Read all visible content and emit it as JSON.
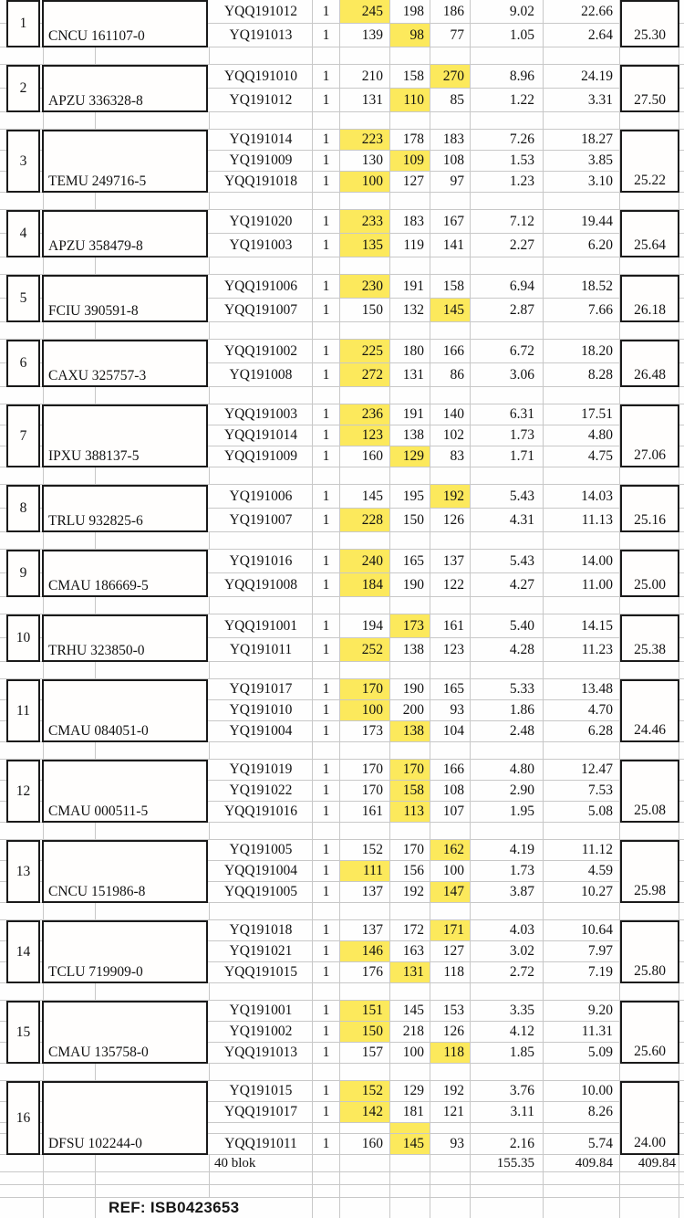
{
  "colors": {
    "highlight": "#fce95c",
    "grid": "#c8c8c8",
    "border": "#1a1a1a"
  },
  "footer": {
    "summary_label": "40 blok",
    "summary_d1": "155.35",
    "summary_d2": "409.84",
    "summary_total": "409.84",
    "ref": "REF: ISB0423653"
  },
  "groups": [
    {
      "num": "1",
      "container": "CNCU 161107-0",
      "box_value": "25.30",
      "rows": [
        {
          "batch": "YQQ191012",
          "qty": "1",
          "v1": "245",
          "v2": "198",
          "v3": "186",
          "d1": "9.02",
          "d2": "22.66",
          "hl": "v1"
        },
        {
          "batch": "YQ191013",
          "qty": "1",
          "v1": "139",
          "v2": "98",
          "v3": "77",
          "d1": "1.05",
          "d2": "2.64",
          "hl": "v2"
        }
      ]
    },
    {
      "num": "2",
      "container": "APZU 336328-8",
      "box_value": "27.50",
      "rows": [
        {
          "batch": "YQQ191010",
          "qty": "1",
          "v1": "210",
          "v2": "158",
          "v3": "270",
          "d1": "8.96",
          "d2": "24.19",
          "hl": "v3"
        },
        {
          "batch": "YQ191012",
          "qty": "1",
          "v1": "131",
          "v2": "110",
          "v3": "85",
          "d1": "1.22",
          "d2": "3.31",
          "hl": "v2"
        }
      ]
    },
    {
      "num": "3",
      "container": "TEMU 249716-5",
      "box_value": "25.22",
      "rows": [
        {
          "batch": "YQ191014",
          "qty": "1",
          "v1": "223",
          "v2": "178",
          "v3": "183",
          "d1": "7.26",
          "d2": "18.27",
          "hl": "v1"
        },
        {
          "batch": "YQ191009",
          "qty": "1",
          "v1": "130",
          "v2": "109",
          "v3": "108",
          "d1": "1.53",
          "d2": "3.85",
          "hl": "v2"
        },
        {
          "batch": "YQQ191018",
          "qty": "1",
          "v1": "100",
          "v2": "127",
          "v3": "97",
          "d1": "1.23",
          "d2": "3.10",
          "hl": "v1"
        }
      ]
    },
    {
      "num": "4",
      "container": "APZU 358479-8",
      "box_value": "25.64",
      "rows": [
        {
          "batch": "YQ191020",
          "qty": "1",
          "v1": "233",
          "v2": "183",
          "v3": "167",
          "d1": "7.12",
          "d2": "19.44",
          "hl": "v1"
        },
        {
          "batch": "YQ191003",
          "qty": "1",
          "v1": "135",
          "v2": "119",
          "v3": "141",
          "d1": "2.27",
          "d2": "6.20",
          "hl": "v1"
        }
      ]
    },
    {
      "num": "5",
      "container": "FCIU 390591-8",
      "box_value": "26.18",
      "rows": [
        {
          "batch": "YQQ191006",
          "qty": "1",
          "v1": "230",
          "v2": "191",
          "v3": "158",
          "d1": "6.94",
          "d2": "18.52",
          "hl": "v1"
        },
        {
          "batch": "YQQ191007",
          "qty": "1",
          "v1": "150",
          "v2": "132",
          "v3": "145",
          "d1": "2.87",
          "d2": "7.66",
          "hl": "v3"
        }
      ]
    },
    {
      "num": "6",
      "container": "CAXU 325757-3",
      "box_value": "26.48",
      "rows": [
        {
          "batch": "YQQ191002",
          "qty": "1",
          "v1": "225",
          "v2": "180",
          "v3": "166",
          "d1": "6.72",
          "d2": "18.20",
          "hl": "v1"
        },
        {
          "batch": "YQ191008",
          "qty": "1",
          "v1": "272",
          "v2": "131",
          "v3": "86",
          "d1": "3.06",
          "d2": "8.28",
          "hl": "v1"
        }
      ]
    },
    {
      "num": "7",
      "container": "IPXU 388137-5",
      "box_value": "27.06",
      "rows": [
        {
          "batch": "YQQ191003",
          "qty": "1",
          "v1": "236",
          "v2": "191",
          "v3": "140",
          "d1": "6.31",
          "d2": "17.51",
          "hl": "v1"
        },
        {
          "batch": "YQQ191014",
          "qty": "1",
          "v1": "123",
          "v2": "138",
          "v3": "102",
          "d1": "1.73",
          "d2": "4.80",
          "hl": "v1"
        },
        {
          "batch": "YQQ191009",
          "qty": "1",
          "v1": "160",
          "v2": "129",
          "v3": "83",
          "d1": "1.71",
          "d2": "4.75",
          "hl": "v2"
        }
      ]
    },
    {
      "num": "8",
      "container": "TRLU 932825-6",
      "box_value": "25.16",
      "rows": [
        {
          "batch": "YQ191006",
          "qty": "1",
          "v1": "145",
          "v2": "195",
          "v3": "192",
          "d1": "5.43",
          "d2": "14.03",
          "hl": "v3"
        },
        {
          "batch": "YQ191007",
          "qty": "1",
          "v1": "228",
          "v2": "150",
          "v3": "126",
          "d1": "4.31",
          "d2": "11.13",
          "hl": "v1"
        }
      ]
    },
    {
      "num": "9",
      "container": "CMAU 186669-5",
      "box_value": "25.00",
      "rows": [
        {
          "batch": "YQ191016",
          "qty": "1",
          "v1": "240",
          "v2": "165",
          "v3": "137",
          "d1": "5.43",
          "d2": "14.00",
          "hl": "v1"
        },
        {
          "batch": "YQQ191008",
          "qty": "1",
          "v1": "184",
          "v2": "190",
          "v3": "122",
          "d1": "4.27",
          "d2": "11.00",
          "hl": "v1"
        }
      ]
    },
    {
      "num": "10",
      "container": "TRHU 323850-0",
      "box_value": "25.38",
      "rows": [
        {
          "batch": "YQQ191001",
          "qty": "1",
          "v1": "194",
          "v2": "173",
          "v3": "161",
          "d1": "5.40",
          "d2": "14.15",
          "hl": "v2"
        },
        {
          "batch": "YQ191011",
          "qty": "1",
          "v1": "252",
          "v2": "138",
          "v3": "123",
          "d1": "4.28",
          "d2": "11.23",
          "hl": "v1"
        }
      ]
    },
    {
      "num": "11",
      "container": "CMAU 084051-0",
      "box_value": "24.46",
      "rows": [
        {
          "batch": "YQ191017",
          "qty": "1",
          "v1": "170",
          "v2": "190",
          "v3": "165",
          "d1": "5.33",
          "d2": "13.48",
          "hl": "v1"
        },
        {
          "batch": "YQ191010",
          "qty": "1",
          "v1": "100",
          "v2": "200",
          "v3": "93",
          "d1": "1.86",
          "d2": "4.70",
          "hl": "v1"
        },
        {
          "batch": "YQ191004",
          "qty": "1",
          "v1": "173",
          "v2": "138",
          "v3": "104",
          "d1": "2.48",
          "d2": "6.28",
          "hl": "v2"
        }
      ]
    },
    {
      "num": "12",
      "container": "CMAU 000511-5",
      "box_value": "25.08",
      "rows": [
        {
          "batch": "YQ191019",
          "qty": "1",
          "v1": "170",
          "v2": "170",
          "v3": "166",
          "d1": "4.80",
          "d2": "12.47",
          "hl": "v2"
        },
        {
          "batch": "YQ191022",
          "qty": "1",
          "v1": "170",
          "v2": "158",
          "v3": "108",
          "d1": "2.90",
          "d2": "7.53",
          "hl": "v2"
        },
        {
          "batch": "YQQ191016",
          "qty": "1",
          "v1": "161",
          "v2": "113",
          "v3": "107",
          "d1": "1.95",
          "d2": "5.08",
          "hl": "v2"
        }
      ]
    },
    {
      "num": "13",
      "container": "CNCU 151986-8",
      "box_value": "25.98",
      "rows": [
        {
          "batch": "YQ191005",
          "qty": "1",
          "v1": "152",
          "v2": "170",
          "v3": "162",
          "d1": "4.19",
          "d2": "11.12",
          "hl": "v3"
        },
        {
          "batch": "YQQ191004",
          "qty": "1",
          "v1": "111",
          "v2": "156",
          "v3": "100",
          "d1": "1.73",
          "d2": "4.59",
          "hl": "v1"
        },
        {
          "batch": "YQQ191005",
          "qty": "1",
          "v1": "137",
          "v2": "192",
          "v3": "147",
          "d1": "3.87",
          "d2": "10.27",
          "hl": "v3"
        }
      ]
    },
    {
      "num": "14",
      "container": "TCLU 719909-0",
      "box_value": "25.80",
      "rows": [
        {
          "batch": "YQ191018",
          "qty": "1",
          "v1": "137",
          "v2": "172",
          "v3": "171",
          "d1": "4.03",
          "d2": "10.64",
          "hl": "v3"
        },
        {
          "batch": "YQ191021",
          "qty": "1",
          "v1": "146",
          "v2": "163",
          "v3": "127",
          "d1": "3.02",
          "d2": "7.97",
          "hl": "v1"
        },
        {
          "batch": "YQQ191015",
          "qty": "1",
          "v1": "176",
          "v2": "131",
          "v3": "118",
          "d1": "2.72",
          "d2": "7.19",
          "hl": "v2"
        }
      ]
    },
    {
      "num": "15",
      "container": "CMAU 135758-0",
      "box_value": "25.60",
      "rows": [
        {
          "batch": "YQ191001",
          "qty": "1",
          "v1": "151",
          "v2": "145",
          "v3": "153",
          "d1": "3.35",
          "d2": "9.20",
          "hl": "v1"
        },
        {
          "batch": "YQ191002",
          "qty": "1",
          "v1": "150",
          "v2": "218",
          "v3": "126",
          "d1": "4.12",
          "d2": "11.31",
          "hl": "v1"
        },
        {
          "batch": "YQQ191013",
          "qty": "1",
          "v1": "157",
          "v2": "100",
          "v3": "118",
          "d1": "1.85",
          "d2": "5.09",
          "hl": "v3"
        }
      ]
    },
    {
      "num": "16",
      "container": "DFSU 102244-0",
      "box_value": "24.00",
      "rows": [
        {
          "batch": "YQ191015",
          "qty": "1",
          "v1": "152",
          "v2": "129",
          "v3": "192",
          "d1": "3.76",
          "d2": "10.00",
          "hl": "v1"
        },
        {
          "batch": "YQQ191017",
          "qty": "1",
          "v1": "142",
          "v2": "181",
          "v3": "121",
          "d1": "3.11",
          "d2": "8.26",
          "hl": "v1"
        },
        {
          "blank": true,
          "hl": "v2"
        },
        {
          "batch": "YQQ191011",
          "qty": "1",
          "v1": "160",
          "v2": "145",
          "v3": "93",
          "d1": "2.16",
          "d2": "5.74",
          "hl": "v2"
        }
      ]
    }
  ]
}
